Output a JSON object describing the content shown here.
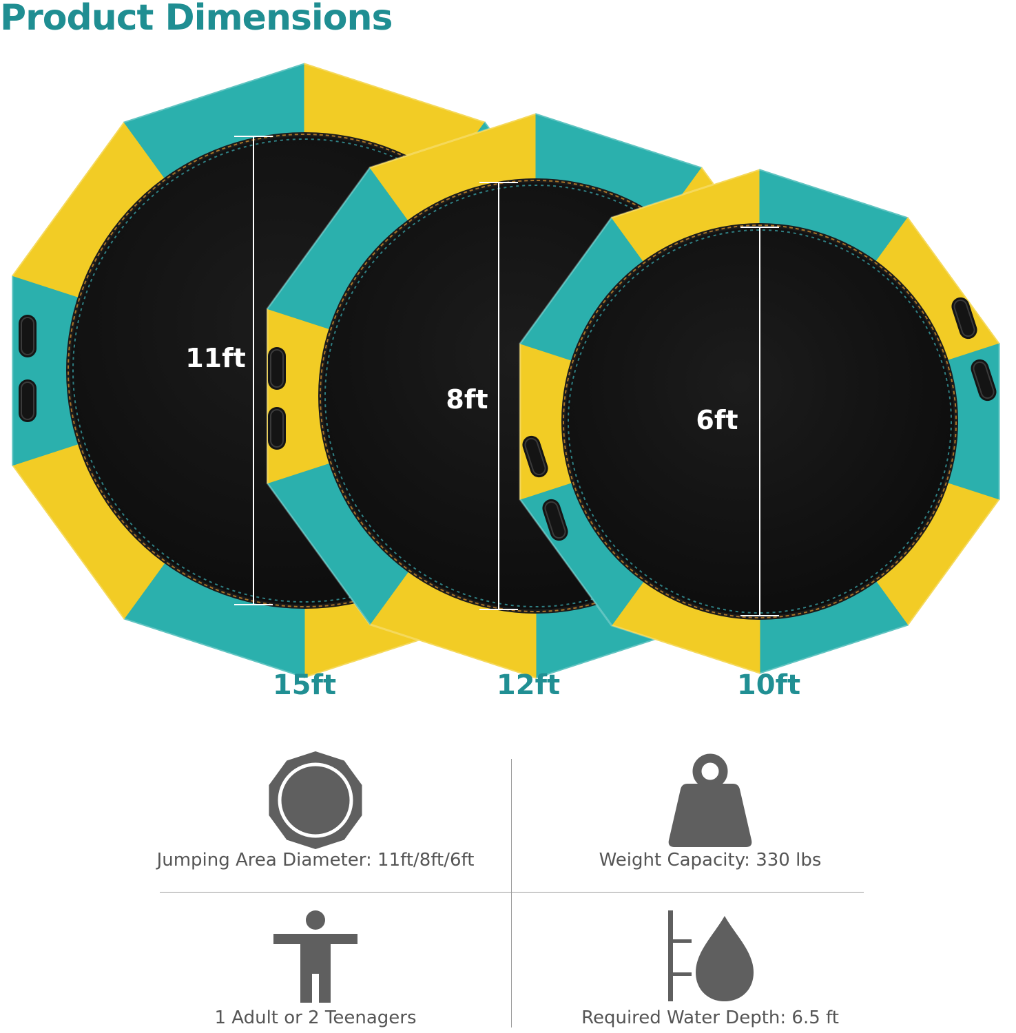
{
  "header": {
    "title": "Product Dimensions"
  },
  "trampolines": [
    {
      "outer_label": "15ft",
      "jump_label": "11ft"
    },
    {
      "outer_label": "12ft",
      "jump_label": "8ft"
    },
    {
      "outer_label": "10ft",
      "jump_label": "6ft"
    }
  ],
  "colors": {
    "teal": "#2bb0ad",
    "yellow": "#f2cc25",
    "title": "#1f8e92",
    "icon_gray": "#5f5f5f"
  },
  "specs": [
    {
      "icon": "decagon-trampoline-icon",
      "text": "Jumping Area Diameter: 11ft/8ft/6ft"
    },
    {
      "icon": "weight-icon",
      "text": "Weight Capacity: 330 lbs"
    },
    {
      "icon": "person-icon",
      "text": "1 Adult or 2 Teenagers"
    },
    {
      "icon": "water-depth-icon",
      "text": "Required Water Depth: 6.5 ft"
    }
  ]
}
